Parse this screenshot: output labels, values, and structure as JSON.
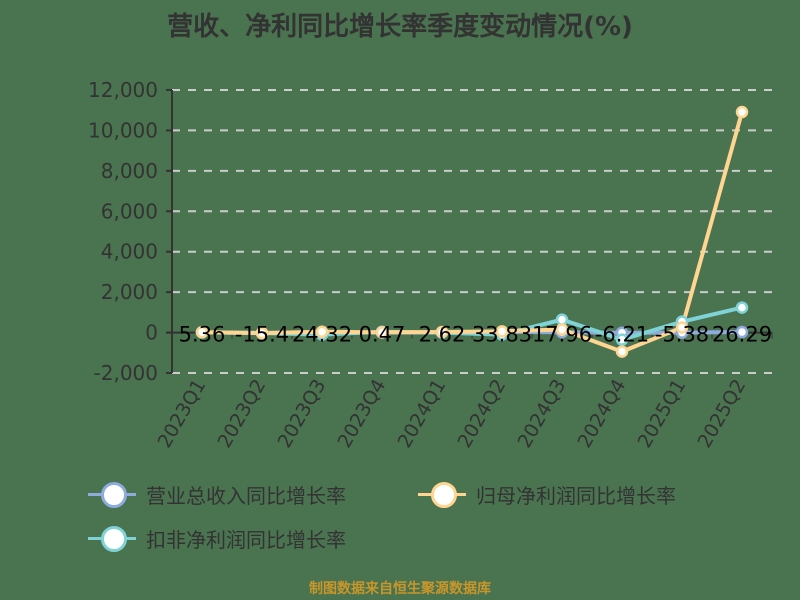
{
  "header": {
    "title": "营收、净利同比增长率季度变动情况(%)"
  },
  "legend": {
    "items": [
      {
        "label": "营业总收入同比增长率",
        "color": "#8faadc"
      },
      {
        "label": "归母净利润同比增长率",
        "color": "#ffd591"
      },
      {
        "label": "扣非净利润同比增长率",
        "color": "#7fd3d6"
      }
    ]
  },
  "footer": {
    "source": "制图数据来自恒生聚源数据库"
  },
  "colors": {
    "background": "#4a7350",
    "axis": "#333333",
    "grid": "#cccccc",
    "label": "#000000"
  },
  "chart_data": {
    "type": "line",
    "title": "营收、净利同比增长率季度变动情况(%)",
    "xlabel": "",
    "ylabel": "",
    "categories": [
      "2023Q1",
      "2023Q2",
      "2023Q3",
      "2023Q4",
      "2024Q1",
      "2024Q2",
      "2024Q3",
      "2024Q4",
      "2025Q1",
      "2025Q2"
    ],
    "ylim": [
      -2000,
      12000
    ],
    "yticks": [
      -2000,
      0,
      2000,
      4000,
      6000,
      8000,
      10000,
      12000
    ],
    "ytick_labels": [
      "-2,000",
      "0",
      "2,000",
      "4,000",
      "6,000",
      "8,000",
      "10,000",
      "12,000"
    ],
    "grid": {
      "horizontal": true,
      "style": "dashed"
    },
    "legend_position": "bottom",
    "series": [
      {
        "name": "营业总收入同比增长率",
        "color": "#8faadc",
        "values": [
          5.36,
          -15.4,
          24.32,
          0.47,
          2.62,
          33.83,
          17.96,
          -6.21,
          -5.38,
          26.29
        ],
        "data_labels": [
          "5.36",
          "-15.4",
          "24.32",
          "0.47",
          "2.62",
          "33.83",
          "17.96",
          "-6.21",
          "-5.38",
          "26.29"
        ]
      },
      {
        "name": "归母净利润同比增长率",
        "color": "#ffd591",
        "values": [
          20,
          -30,
          40,
          10,
          30,
          60,
          150,
          -940,
          250,
          10910
        ]
      },
      {
        "name": "扣非净利润同比增长率",
        "color": "#7fd3d6",
        "values": [
          10,
          -20,
          -100,
          40,
          0,
          -100,
          640,
          -350,
          540,
          1235
        ]
      }
    ]
  }
}
